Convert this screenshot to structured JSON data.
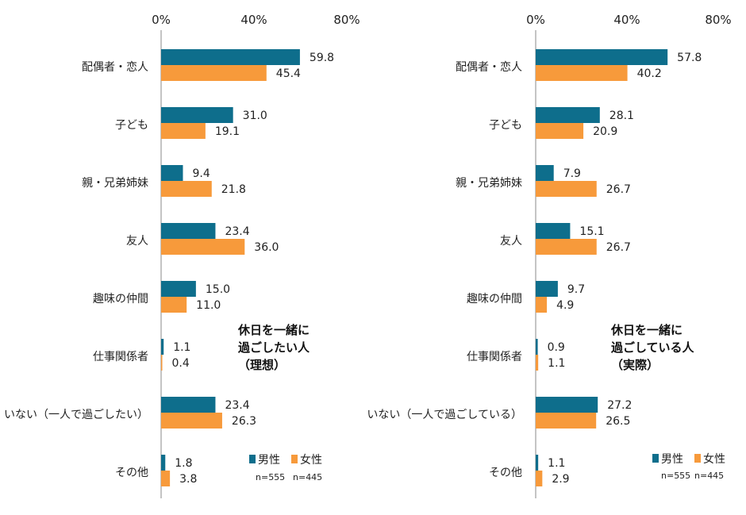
{
  "colors": {
    "male": "#0e6e8c",
    "female": "#f79a3b",
    "axis": "#8a8a8a"
  },
  "chart_data": [
    {
      "type": "bar",
      "orientation": "horizontal",
      "annotation": [
        "休日を一緒に",
        "過ごしたい人",
        "（理想）"
      ],
      "categories": [
        "配偶者・恋人",
        "子ども",
        "親・兄弟姉妹",
        "友人",
        "趣味の仲間",
        "仕事関係者",
        "いない（一人で過ごしたい）",
        "その他"
      ],
      "series": [
        {
          "name": "男性",
          "values": [
            59.8,
            31.0,
            9.4,
            23.4,
            15.0,
            1.1,
            23.4,
            1.8
          ]
        },
        {
          "name": "女性",
          "values": [
            45.4,
            19.1,
            21.8,
            36.0,
            11.0,
            0.4,
            26.3,
            3.8
          ]
        }
      ],
      "value_labels": [
        [
          "59.8",
          "31.0",
          "9.4",
          "23.4",
          "15.0",
          "1.1",
          "23.4",
          "1.8"
        ],
        [
          "45.4",
          "19.1",
          "21.8",
          "36.0",
          "11.0",
          "0.4",
          "26.3",
          "3.8"
        ]
      ],
      "xlim": [
        0,
        80
      ],
      "ticks": [
        "0%",
        "40%",
        "80%"
      ],
      "legend": {
        "male": "男性",
        "female": "女性",
        "n_male": "n=555",
        "n_female": "n=445",
        "position": "bottom-right"
      }
    },
    {
      "type": "bar",
      "orientation": "horizontal",
      "annotation": [
        "休日を一緒に",
        "過ごしている人",
        "（実際）"
      ],
      "categories": [
        "配偶者・恋人",
        "子ども",
        "親・兄弟姉妹",
        "友人",
        "趣味の仲間",
        "仕事関係者",
        "いない（一人で過ごしている）",
        "その他"
      ],
      "series": [
        {
          "name": "男性",
          "values": [
            57.8,
            28.1,
            7.9,
            15.1,
            9.7,
            0.9,
            27.2,
            1.1
          ]
        },
        {
          "name": "女性",
          "values": [
            40.2,
            20.9,
            26.7,
            26.7,
            4.9,
            1.1,
            26.5,
            2.9
          ]
        }
      ],
      "value_labels": [
        [
          "57.8",
          "28.1",
          "7.9",
          "15.1",
          "9.7",
          "0.9",
          "27.2",
          "1.1"
        ],
        [
          "40.2",
          "20.9",
          "26.7",
          "26.7",
          "4.9",
          "1.1",
          "26.5",
          "2.9"
        ]
      ],
      "xlim": [
        0,
        80
      ],
      "ticks": [
        "0%",
        "40%",
        "80%"
      ],
      "legend": {
        "male": "男性",
        "female": "女性",
        "n_male": "n=555",
        "n_female": "n=445",
        "position": "bottom-right"
      }
    }
  ]
}
